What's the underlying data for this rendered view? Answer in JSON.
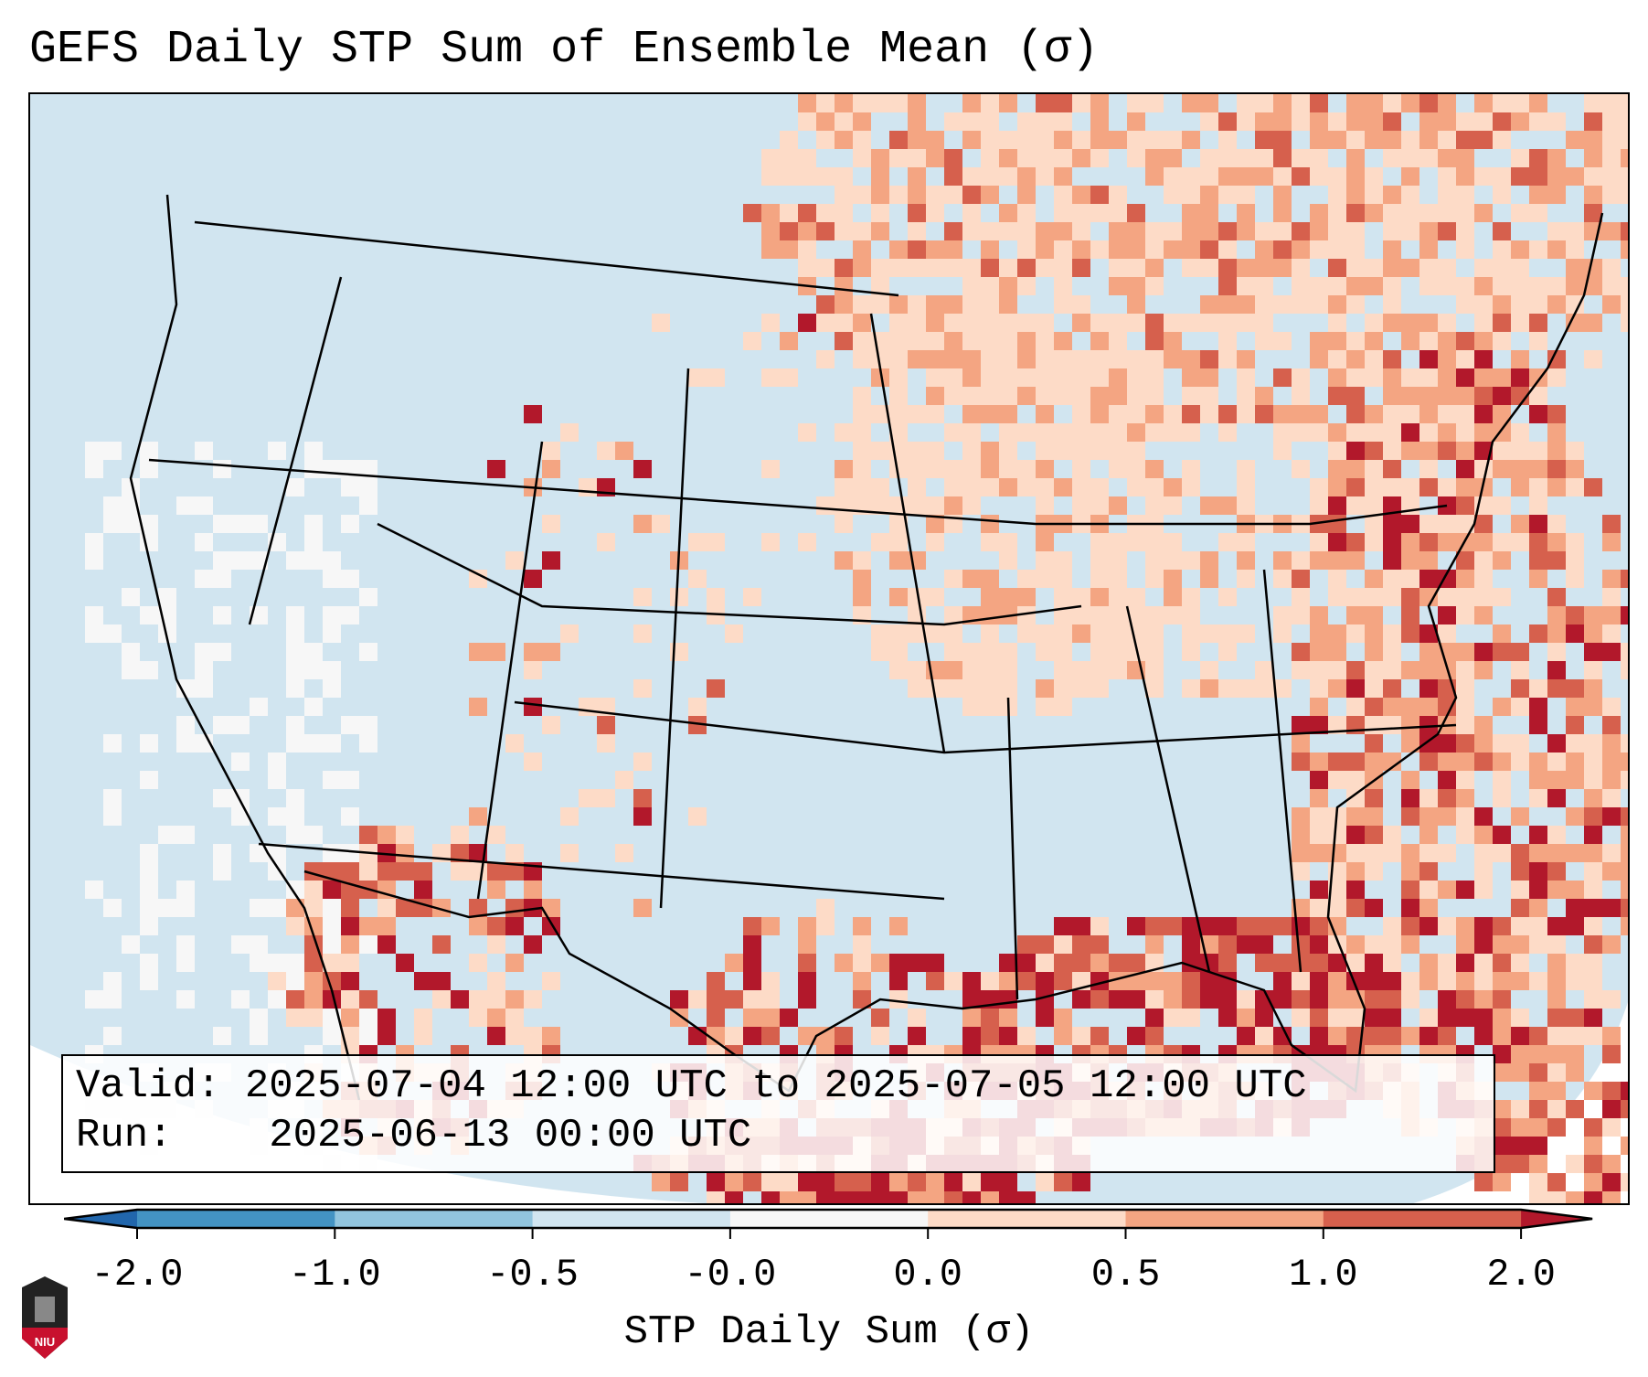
{
  "title": "GEFS Daily STP Sum of Ensemble Mean (σ)",
  "info": {
    "valid_label": "Valid:",
    "valid_value": "2025-07-04 12:00 UTC to 2025-07-05 12:00 UTC",
    "run_label": "Run:",
    "run_value": "2025-06-13 00:00 UTC"
  },
  "logo_text": "NIU",
  "chart_data": {
    "type": "heatmap",
    "title": "GEFS Daily STP Sum of Ensemble Mean (σ)",
    "colorbar": {
      "label": "STP Daily Sum (σ)",
      "ticks": [
        "-2.0",
        "-1.0",
        "-0.5",
        "-0.0",
        "0.0",
        "0.5",
        "1.0",
        "2.0"
      ],
      "bins": [
        {
          "range": [
            -2.0,
            -1.0
          ],
          "color": "#4393c3"
        },
        {
          "range": [
            -1.0,
            -0.5
          ],
          "color": "#92c5de"
        },
        {
          "range": [
            -0.5,
            -0.0
          ],
          "color": "#d1e5f0"
        },
        {
          "range": [
            -0.0,
            0.0
          ],
          "color": "#f7f7f7"
        },
        {
          "range": [
            0.0,
            0.5
          ],
          "color": "#fddbc7"
        },
        {
          "range": [
            0.5,
            1.0
          ],
          "color": "#f4a582"
        },
        {
          "range": [
            1.0,
            2.0
          ],
          "color": "#d6604d"
        }
      ],
      "extend_low_color": "#2166ac",
      "extend_high_color": "#b2182b"
    }
  }
}
